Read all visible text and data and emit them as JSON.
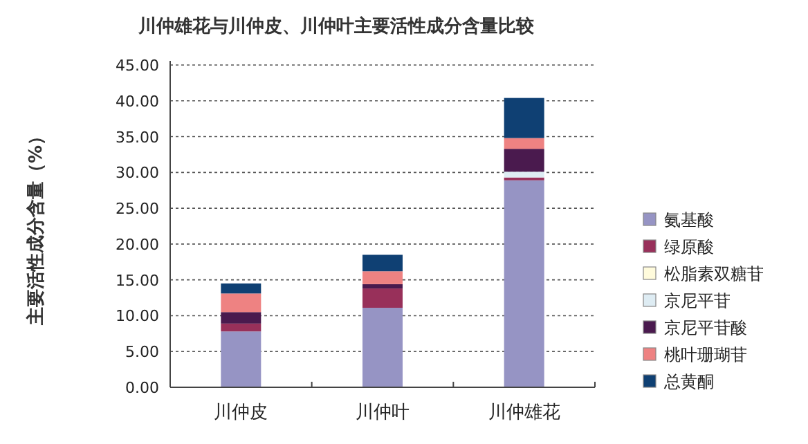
{
  "chart_data": {
    "type": "bar",
    "stacked": true,
    "title": "川仲雄花与川仲皮、川仲叶主要活性成分含量比较",
    "ylabel": "主要活性成分含量（%）",
    "categories": [
      "川仲皮",
      "川仲叶",
      "川仲雄花"
    ],
    "series": [
      {
        "name": "氨基酸",
        "color": "#9694c4",
        "values": [
          7.8,
          11.1,
          28.9
        ]
      },
      {
        "name": "绿原酸",
        "color": "#98305a",
        "values": [
          1.1,
          2.7,
          0.4
        ]
      },
      {
        "name": "松脂素双糖苷",
        "color": "#fffbdc",
        "values": [
          0,
          0,
          0
        ]
      },
      {
        "name": "京尼平苷",
        "color": "#deecf3",
        "values": [
          0,
          0,
          0.8
        ]
      },
      {
        "name": "京尼平苷酸",
        "color": "#4a1a4e",
        "values": [
          1.6,
          0.6,
          3.2
        ]
      },
      {
        "name": "桃叶珊瑚苷",
        "color": "#ee8282",
        "values": [
          2.6,
          1.8,
          1.5
        ]
      },
      {
        "name": "总黄酮",
        "color": "#0f4073",
        "values": [
          1.4,
          2.3,
          5.6
        ]
      }
    ],
    "ylim": [
      0,
      45
    ],
    "yticks": [
      {
        "value": 0,
        "label": "0.00"
      },
      {
        "value": 5,
        "label": "5.00"
      },
      {
        "value": 10,
        "label": "10.00"
      },
      {
        "value": 15,
        "label": "15.00"
      },
      {
        "value": 20,
        "label": "20.00"
      },
      {
        "value": 25,
        "label": "25.00"
      },
      {
        "value": 30,
        "label": "30.00"
      },
      {
        "value": 35,
        "label": "35.00"
      },
      {
        "value": 40,
        "label": "40.00"
      },
      {
        "value": 45,
        "label": "45.00"
      }
    ],
    "grid": "y",
    "legend": "right"
  }
}
